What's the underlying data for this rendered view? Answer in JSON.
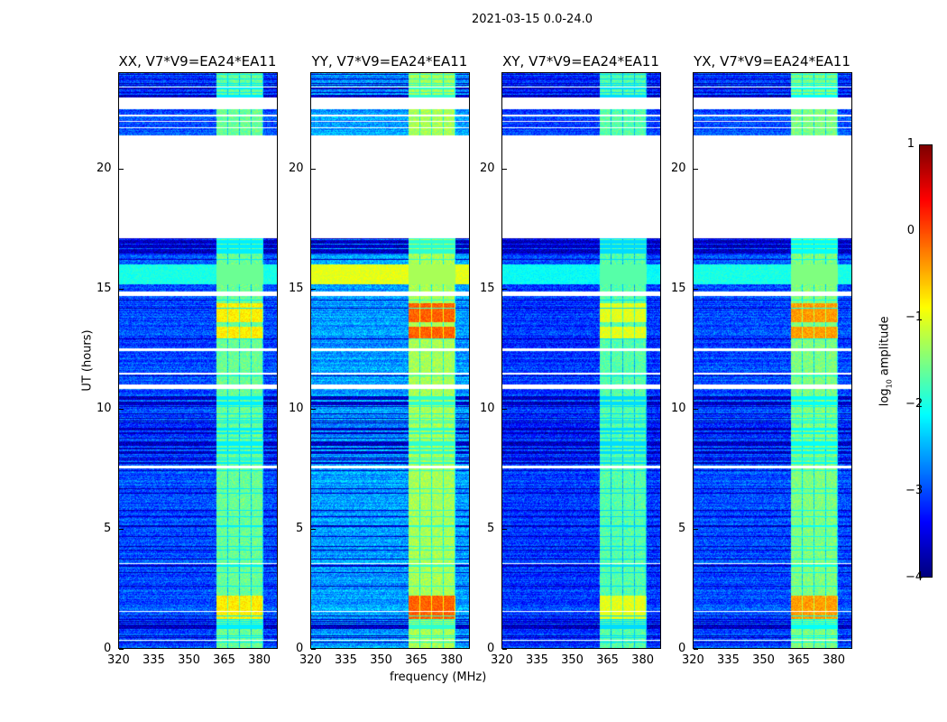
{
  "chart_data": {
    "type": "heatmap",
    "suptitle": "2021-03-15 0.0-24.0",
    "xlabel": "frequency (MHz)",
    "ylabel": "UT (hours)",
    "xlim": [
      320,
      388
    ],
    "ylim": [
      0,
      24
    ],
    "xticks": [
      "320",
      "335",
      "350",
      "365",
      "380"
    ],
    "xtick_values": [
      320,
      335,
      350,
      365,
      380
    ],
    "yticks": [
      "0",
      "5",
      "10",
      "15",
      "20"
    ],
    "ytick_values": [
      0,
      5,
      10,
      15,
      20
    ],
    "panels": [
      {
        "title": "XX, V7*V9=EA24*EA11",
        "base_level": -3.0,
        "band_level": -1.6,
        "peak_level": -0.8
      },
      {
        "title": "YY, V7*V9=EA24*EA11",
        "base_level": -2.6,
        "band_level": -1.3,
        "peak_level": -0.1
      },
      {
        "title": "XY, V7*V9=EA24*EA11",
        "base_level": -3.1,
        "band_level": -1.7,
        "peak_level": -1.0
      },
      {
        "title": "YX, V7*V9=EA24*EA11",
        "base_level": -3.0,
        "band_level": -1.5,
        "peak_level": -0.4
      }
    ],
    "bright_band_mhz": [
      362,
      382
    ],
    "flagged_intervals_hours": [
      [
        17.1,
        21.4
      ],
      [
        22.5,
        23.0
      ],
      [
        21.7,
        21.75
      ],
      [
        21.95,
        22.0
      ],
      [
        22.2,
        22.25
      ],
      [
        10.8,
        11.0
      ],
      [
        11.4,
        11.5
      ],
      [
        14.7,
        14.9
      ],
      [
        7.5,
        7.6
      ],
      [
        12.4,
        12.5
      ],
      [
        3.5,
        3.55
      ],
      [
        1.5,
        1.55
      ],
      [
        0.3,
        0.35
      ],
      [
        23.4,
        23.45
      ]
    ],
    "colorbar": {
      "label": "log10 amplitude",
      "label_main": "log",
      "label_sub": "10",
      "label_rest": " amplitude",
      "range": [
        -4,
        1
      ],
      "colormap": "jet",
      "ticks": [
        "1",
        "0",
        "−1",
        "−2",
        "−3",
        "−4"
      ],
      "tick_values": [
        1,
        0,
        -1,
        -2,
        -3,
        -4
      ]
    }
  }
}
